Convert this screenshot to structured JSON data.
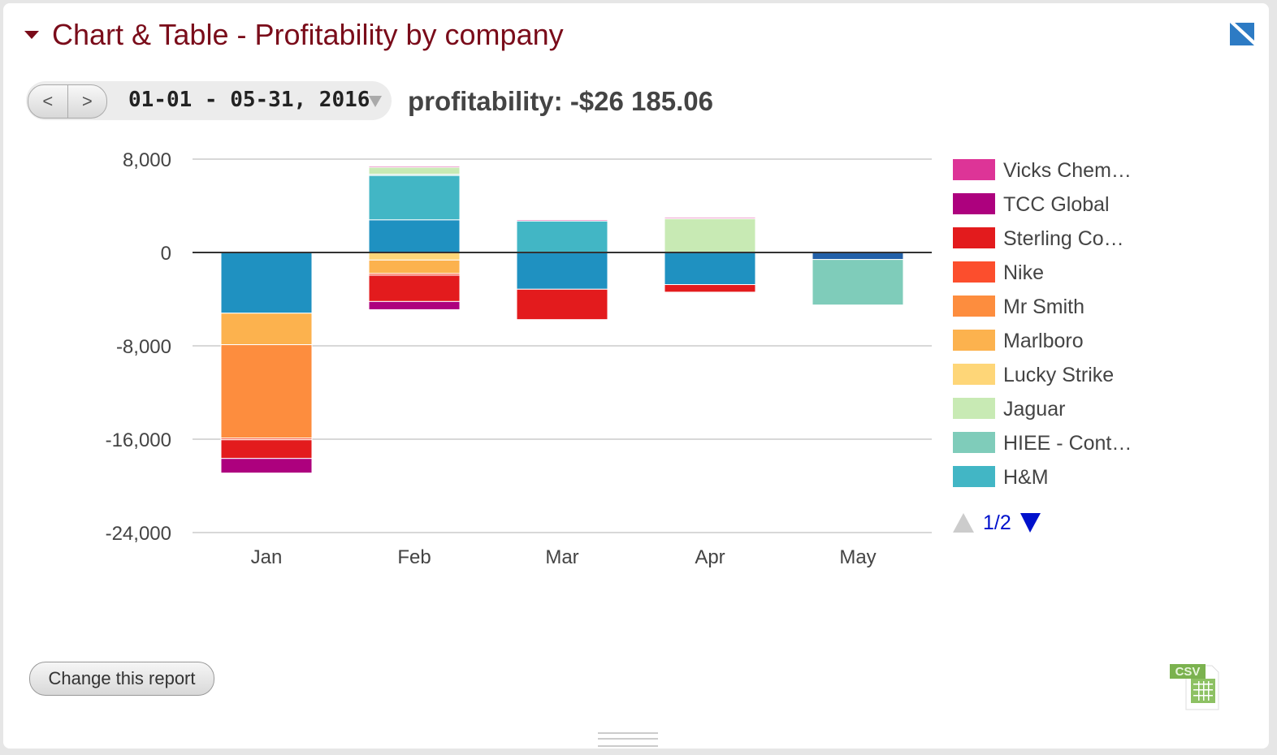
{
  "header": {
    "title": "Chart & Table - Profitability by company"
  },
  "date_nav": {
    "prev": "<",
    "next": ">",
    "range": "01-01 - 05-31, 2016"
  },
  "summary": {
    "profitability": "profitability: -$26 185.06"
  },
  "footer": {
    "change_report": "Change this report",
    "csv_label": "CSV"
  },
  "chart_data": {
    "type": "bar",
    "stacked": true,
    "categories": [
      "Jan",
      "Feb",
      "Mar",
      "Apr",
      "May"
    ],
    "ylim": [
      -24000,
      8000
    ],
    "yticks": [
      {
        "v": 8000,
        "label": "8,000"
      },
      {
        "v": 0,
        "label": "0"
      },
      {
        "v": -8000,
        "label": "-8,000"
      },
      {
        "v": -16000,
        "label": "-16,000"
      },
      {
        "v": -24000,
        "label": "-24,000"
      }
    ],
    "series": [
      {
        "id": "s12",
        "name": null,
        "color": "#2260a8",
        "values": [
          0,
          0,
          0,
          0,
          -600
        ]
      },
      {
        "id": "s11",
        "name": null,
        "color": "#1f91c1",
        "values": [
          -5200,
          2800,
          -3150,
          -2750,
          0
        ]
      },
      {
        "id": "s10",
        "name": "H&M",
        "color": "#42b6c5",
        "values": [
          0,
          3800,
          2700,
          0,
          0
        ]
      },
      {
        "id": "s9",
        "name": "HIEE - Cont…",
        "color": "#7fccba",
        "values": [
          0,
          100,
          0,
          0,
          -3900
        ]
      },
      {
        "id": "s8",
        "name": "Jaguar",
        "color": "#c8eab4",
        "values": [
          0,
          600,
          0,
          2900,
          0
        ]
      },
      {
        "id": "s7",
        "name": "Lucky Strike",
        "color": "#fed678",
        "values": [
          0,
          -650,
          0,
          0,
          0
        ]
      },
      {
        "id": "s6",
        "name": "Marlboro",
        "color": "#fcb24e",
        "values": [
          -2700,
          -1150,
          0,
          0,
          0
        ]
      },
      {
        "id": "s5",
        "name": "Mr Smith",
        "color": "#fd8d3e",
        "values": [
          -8000,
          0,
          0,
          0,
          0
        ]
      },
      {
        "id": "s4",
        "name": "Nike",
        "color": "#fc4e2d",
        "values": [
          -150,
          -150,
          0,
          0,
          0
        ]
      },
      {
        "id": "s3",
        "name": "Sterling Co…",
        "color": "#e31b1d",
        "values": [
          -1600,
          -2250,
          -2600,
          -650,
          0
        ]
      },
      {
        "id": "s2",
        "name": "TCC Global",
        "color": "#ad017e",
        "values": [
          -1250,
          -700,
          0,
          0,
          0
        ]
      },
      {
        "id": "s1",
        "name": "Vicks Chem…",
        "color": "#dd3497",
        "values": [
          0,
          100,
          100,
          100,
          0
        ]
      }
    ],
    "legend": {
      "position": "right",
      "page": "1/2"
    }
  }
}
